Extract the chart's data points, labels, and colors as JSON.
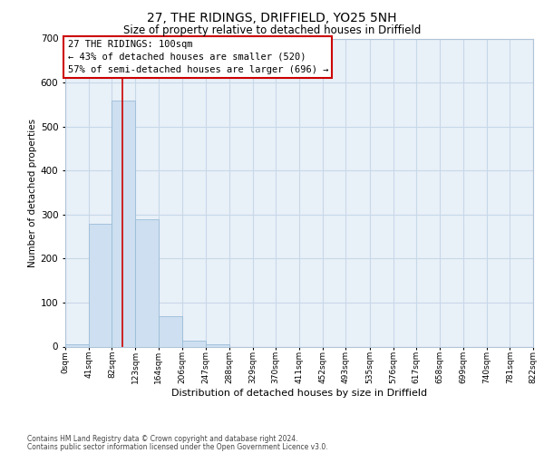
{
  "title1": "27, THE RIDINGS, DRIFFIELD, YO25 5NH",
  "title2": "Size of property relative to detached houses in Driffield",
  "xlabel": "Distribution of detached houses by size in Driffield",
  "ylabel": "Number of detached properties",
  "bin_edges": [
    0,
    41,
    82,
    123,
    164,
    206,
    247,
    288,
    329,
    370,
    411,
    452,
    493,
    535,
    576,
    617,
    658,
    699,
    740,
    781,
    822
  ],
  "bin_labels": [
    "0sqm",
    "41sqm",
    "82sqm",
    "123sqm",
    "164sqm",
    "206sqm",
    "247sqm",
    "288sqm",
    "329sqm",
    "370sqm",
    "411sqm",
    "452sqm",
    "493sqm",
    "535sqm",
    "576sqm",
    "617sqm",
    "658sqm",
    "699sqm",
    "740sqm",
    "781sqm",
    "822sqm"
  ],
  "bar_heights": [
    5,
    280,
    560,
    290,
    68,
    14,
    5,
    0,
    0,
    0,
    0,
    0,
    0,
    0,
    0,
    0,
    0,
    0,
    0,
    0
  ],
  "bar_color": "#cddff0",
  "bar_edge_color": "#9bbdd8",
  "property_line_x": 100,
  "property_line_color": "#cc0000",
  "ylim": [
    0,
    700
  ],
  "yticks": [
    0,
    100,
    200,
    300,
    400,
    500,
    600,
    700
  ],
  "annotation_title": "27 THE RIDINGS: 100sqm",
  "annotation_line1": "← 43% of detached houses are smaller (520)",
  "annotation_line2": "57% of semi-detached houses are larger (696) →",
  "annotation_box_color": "#ffffff",
  "annotation_box_edge": "#cc0000",
  "footer_line1": "Contains HM Land Registry data © Crown copyright and database right 2024.",
  "footer_line2": "Contains public sector information licensed under the Open Government Licence v3.0.",
  "bg_color": "#ffffff",
  "plot_bg_color": "#e8f0f8",
  "grid_color": "#c8d8e8"
}
